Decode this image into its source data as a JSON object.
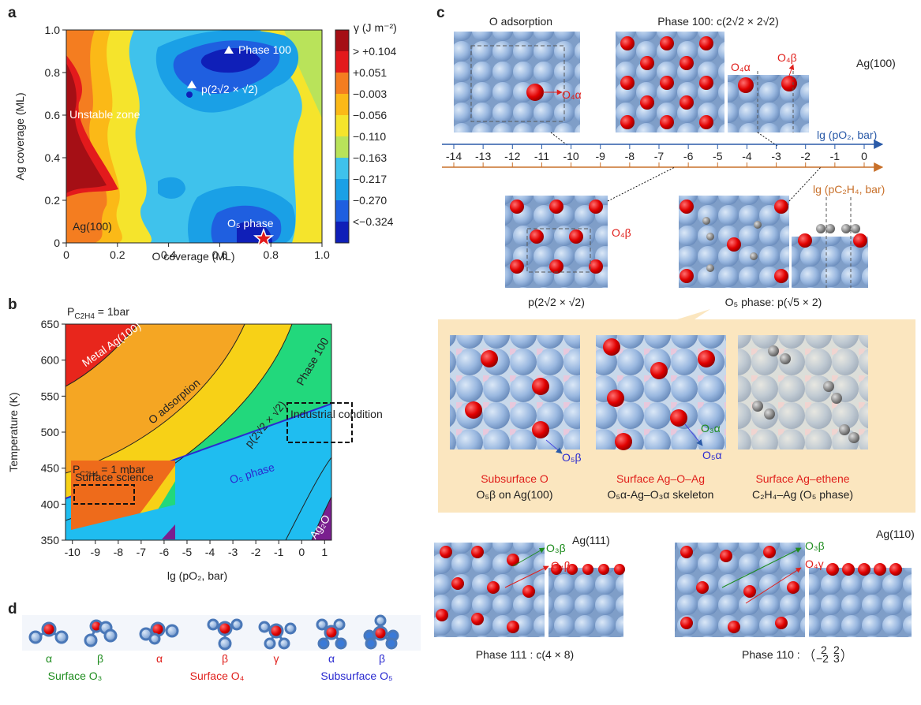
{
  "panel_a": {
    "label": "a",
    "x_label": "O coverage (ML)",
    "y_label": "Ag coverage (ML)",
    "xlim": [
      0,
      1
    ],
    "ylim": [
      0,
      1
    ],
    "xticks": [
      0,
      0.2,
      0.4,
      0.6,
      0.8,
      {
        "value": 1,
        "label": "1.0"
      }
    ],
    "yticks": [
      0,
      0.2,
      0.4,
      0.6,
      0.8,
      {
        "value": 1,
        "label": "1.0"
      }
    ],
    "colorbar_title": "γ (J m⁻²)",
    "colorbar_labels": [
      "> +0.104",
      "+0.051",
      "−0.003",
      "−0.056",
      "−0.110",
      "−0.163",
      "−0.217",
      "−0.270",
      "<−0.324"
    ],
    "annotations": [
      "Phase 100",
      "p(2√2 × √2)",
      "Unstable zone",
      "Ag(100)",
      "O₅ phase"
    ]
  },
  "panel_b": {
    "label": "b",
    "pressure_note": {
      "symbol": "P",
      "subscript": "C2H4",
      "rest": " = 1bar"
    },
    "inset_note": {
      "symbol": "P",
      "subscript": "C2H4",
      "rest": " = 1 mbar"
    },
    "y_label": "Temperature (K)",
    "x_label": "lg (pO₂, bar)",
    "xlim": [
      -10.3,
      1.3
    ],
    "ylim": [
      350,
      650
    ],
    "xticks": [
      -10,
      -9,
      -8,
      -7,
      -6,
      -5,
      -4,
      -3,
      -2,
      -1,
      0,
      1
    ],
    "yticks": [
      350,
      400,
      450,
      500,
      550,
      600,
      650
    ],
    "regions": [
      "Metal Ag(100)",
      "O adsorption",
      "p(2√2 × √2)",
      "Phase 100",
      "Industrial condition",
      "Surface science",
      "O₅ phase",
      "Ag₂O"
    ]
  },
  "panel_c": {
    "label": "c",
    "top_titles": [
      "O adsorption",
      "Phase 100: c(2√2 × 2√2)",
      "Ag(100)"
    ],
    "site_labels": [
      "O₄α",
      "O₄α",
      "O₄β",
      "O₄β"
    ],
    "axis_o2": "lg (pO₂, bar)",
    "axis_c2h4": "lg (pC₂H₄, bar)",
    "ticks": [
      -14,
      -13,
      -12,
      -11,
      -10,
      -9,
      -8,
      -7,
      -6,
      -5,
      -4,
      -3,
      -2,
      -1,
      0
    ],
    "mid_captions": [
      "p(2√2 × √2)",
      "O₅ phase: p(√5 × 2)"
    ],
    "box_site_labels": [
      "O₅β",
      "O₃α",
      "O₅α"
    ],
    "box_titles": [
      "Subsurface O",
      "Surface Ag–O–Ag",
      "Surface Ag–ethene"
    ],
    "box_captions": [
      "O₅β on Ag(100)",
      "O₅α-Ag–O₃α skeleton",
      "C₂H₄–Ag (O₅ phase)"
    ],
    "bottom": [
      {
        "surface": "Ag(111)",
        "sites": [
          "O₃β",
          "O₄β"
        ],
        "caption": "Phase 111 : c(4 × 8)"
      },
      {
        "surface": "Ag(110)",
        "sites": [
          "O₃β",
          "O₄γ"
        ],
        "caption": "Phase 110 :",
        "matrix": [
          "2",
          "2",
          "−2",
          "3"
        ]
      }
    ]
  },
  "panel_d": {
    "label": "d",
    "letters": [
      "α",
      "β",
      "α",
      "β",
      "γ",
      "α",
      "β"
    ],
    "groups": [
      "Surface O₃",
      "Surface O₄",
      "Subsurface O₅"
    ]
  }
}
